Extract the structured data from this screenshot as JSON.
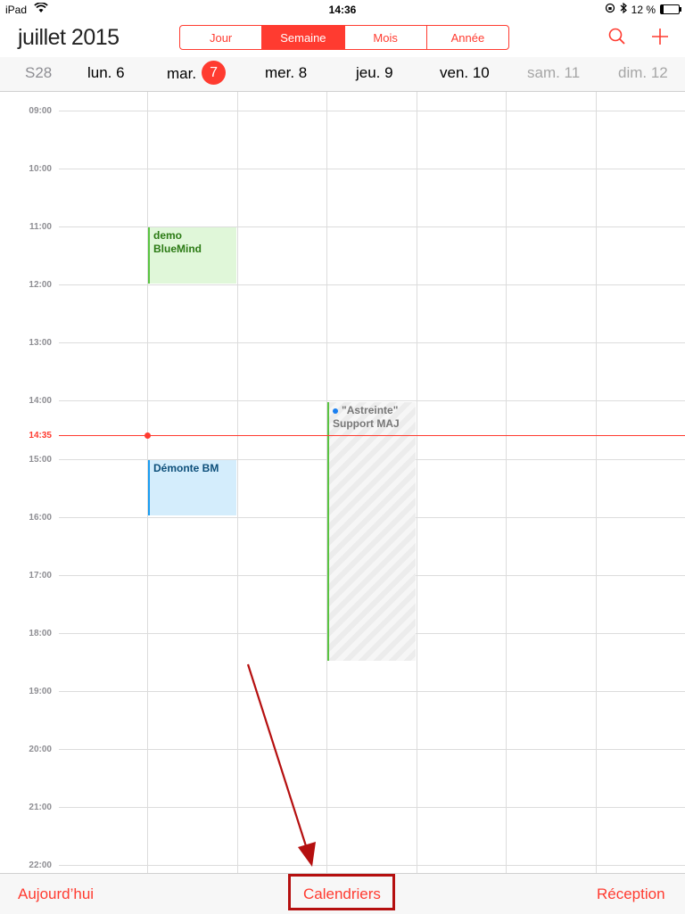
{
  "status_bar": {
    "device": "iPad",
    "time": "14:36",
    "battery": "12 %"
  },
  "header": {
    "title": "juillet 2015",
    "segments": [
      "Jour",
      "Semaine",
      "Mois",
      "Année"
    ],
    "active_segment": "Semaine"
  },
  "days": {
    "week": "S28",
    "mon": "lun. 6",
    "tue_name": "mar.",
    "tue_num": "7",
    "wed": "mer. 8",
    "thu": "jeu. 9",
    "fri": "ven. 10",
    "sat": "sam. 11",
    "sun": "dim. 12"
  },
  "hours": [
    "09:00",
    "10:00",
    "11:00",
    "12:00",
    "13:00",
    "14:00",
    "15:00",
    "16:00",
    "17:00",
    "18:00",
    "19:00",
    "20:00",
    "21:00",
    "22:00"
  ],
  "now": "14:35",
  "events": {
    "demo": "demo BlueMind",
    "demonte": "Démonte BM",
    "astreinte": "\"Astreinte\" Support MAJ"
  },
  "toolbar": {
    "today": "Aujourd’hui",
    "calendars": "Calendriers",
    "inbox": "Réception"
  },
  "colors": {
    "accent": "#ff3b30",
    "annotation": "#b50f0f"
  }
}
